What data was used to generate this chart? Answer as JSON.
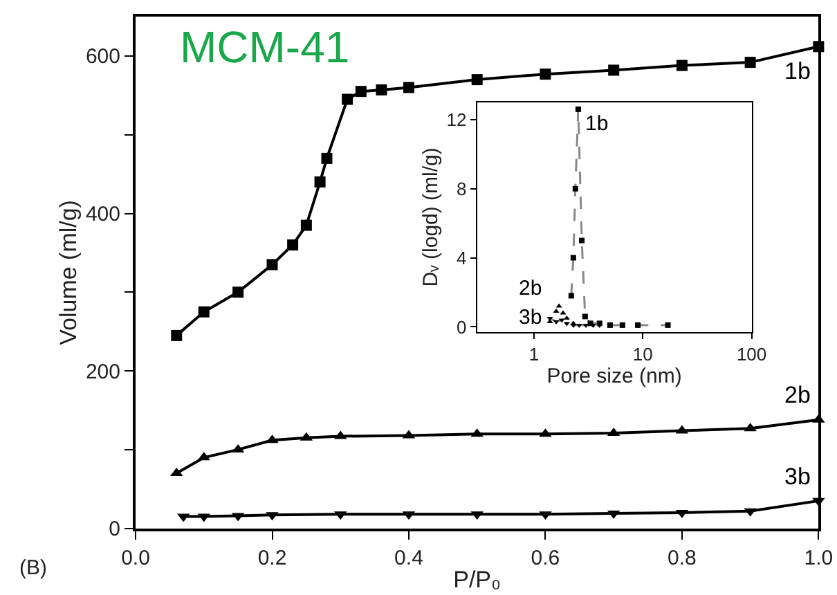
{
  "chart_data": [
    {
      "type": "line",
      "title": "MCM-41",
      "xlabel": "P/P₀",
      "ylabel": "Volume (ml/g)",
      "annotations": [
        "(B)"
      ],
      "xlim": [
        0,
        1.0
      ],
      "xticks": [
        {
          "value": 0,
          "label": "0.0"
        },
        {
          "value": 0.2,
          "label": "0.2"
        },
        {
          "value": 0.4,
          "label": "0.4"
        },
        {
          "value": 0.6,
          "label": "0.6"
        },
        {
          "value": 0.8,
          "label": "0.8"
        },
        {
          "value": 1.0,
          "label": "1.0"
        }
      ],
      "ylim": [
        0,
        650
      ],
      "yticks": [
        0,
        {
          "value": 100,
          "label": null
        },
        200,
        {
          "value": 300,
          "label": null
        },
        400,
        {
          "value": 500,
          "label": null
        },
        600
      ],
      "line_style": "solid",
      "series": [
        {
          "name": "1b",
          "color": "#000000",
          "marker": "square",
          "x": [
            0.06,
            0.1,
            0.15,
            0.2,
            0.23,
            0.25,
            0.27,
            0.28,
            0.31,
            0.33,
            0.36,
            0.4,
            0.5,
            0.6,
            0.7,
            0.8,
            0.9,
            1.0
          ],
          "values": [
            245,
            275,
            300,
            335,
            360,
            385,
            440,
            470,
            545,
            555,
            557,
            560,
            570,
            577,
            582,
            588,
            592,
            612
          ]
        },
        {
          "name": "2b",
          "color": "#000000",
          "marker": "triangle",
          "x": [
            0.06,
            0.1,
            0.15,
            0.2,
            0.25,
            0.3,
            0.4,
            0.5,
            0.6,
            0.7,
            0.8,
            0.9,
            1.0
          ],
          "values": [
            70,
            90,
            100,
            112,
            115,
            117,
            118,
            120,
            120,
            121,
            124,
            127,
            138
          ]
        },
        {
          "name": "3b",
          "color": "#000000",
          "marker": "triangle-down",
          "x": [
            0.07,
            0.1,
            0.15,
            0.2,
            0.3,
            0.4,
            0.5,
            0.6,
            0.7,
            0.8,
            0.9,
            1.0
          ],
          "values": [
            15,
            15,
            16,
            17,
            18,
            18,
            18,
            18,
            19,
            20,
            22,
            35
          ]
        }
      ]
    },
    {
      "type": "line",
      "xlabel": "Pore size (nm)",
      "ylabel": "Dᵥ (logd) (ml/g)",
      "log": "x",
      "xlim": [
        0.3,
        100
      ],
      "xticks": [
        1,
        10,
        100
      ],
      "ylim": [
        -0.3,
        13
      ],
      "yticks": [
        0,
        4,
        8,
        12
      ],
      "line_style": "dashed",
      "series": [
        {
          "name": "1b",
          "color": "#000000",
          "marker": "square",
          "x": [
            2.2,
            2.3,
            2.4,
            2.55,
            2.75,
            2.95,
            3.3,
            4,
            5,
            6.5,
            9,
            17
          ],
          "values": [
            1.8,
            4.0,
            8.0,
            12.6,
            5.0,
            0.6,
            0.2,
            0.2,
            0.1,
            0.1,
            0.1,
            0.1
          ]
        },
        {
          "name": "2b",
          "type": "scatter",
          "color": "#000000",
          "marker": "triangle",
          "x": [
            1.4,
            1.6,
            1.7,
            1.85,
            2.0,
            2.3
          ],
          "values": [
            0.3,
            0.9,
            1.2,
            0.8,
            0.5,
            0.2
          ]
        },
        {
          "name": "3b",
          "color": "#000000",
          "marker": "triangle-down",
          "x": [
            1.4,
            1.6,
            1.8,
            2.0,
            2.3,
            2.6,
            3,
            3.5,
            4
          ],
          "values": [
            0.5,
            0.3,
            0.4,
            0.2,
            0.1,
            0.1,
            0.1,
            0.1,
            0.1
          ]
        }
      ]
    }
  ]
}
